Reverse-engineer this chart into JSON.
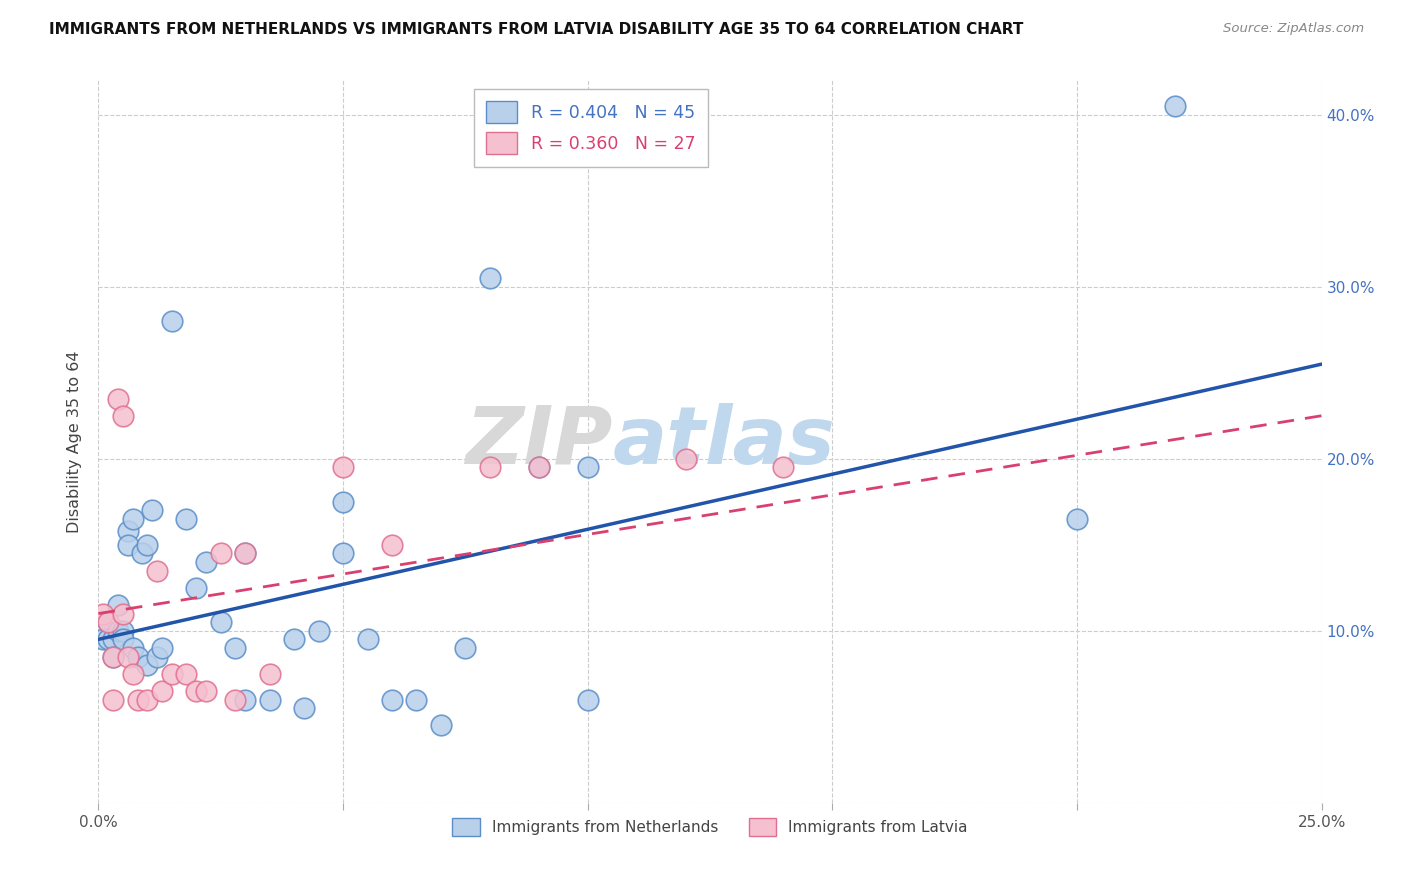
{
  "title": "IMMIGRANTS FROM NETHERLANDS VS IMMIGRANTS FROM LATVIA DISABILITY AGE 35 TO 64 CORRELATION CHART",
  "source": "Source: ZipAtlas.com",
  "ylabel": "Disability Age 35 to 64",
  "xlim": [
    0.0,
    0.25
  ],
  "ylim": [
    0.0,
    0.42
  ],
  "xticks": [
    0.0,
    0.05,
    0.1,
    0.15,
    0.2,
    0.25
  ],
  "yticks": [
    0.0,
    0.1,
    0.2,
    0.3,
    0.4
  ],
  "xticklabels": [
    "0.0%",
    "",
    "",
    "",
    "",
    "25.0%"
  ],
  "yticklabels_right": [
    "",
    "10.0%",
    "20.0%",
    "30.0%",
    "40.0%"
  ],
  "netherlands_R": 0.404,
  "netherlands_N": 45,
  "latvia_R": 0.36,
  "latvia_N": 27,
  "netherlands_color": "#b8d0ea",
  "netherlands_edge_color": "#5b8ec9",
  "netherlands_line_color": "#2255aa",
  "latvia_color": "#f5c0cf",
  "latvia_edge_color": "#e07090",
  "latvia_line_color": "#d94070",
  "legend_label_netherlands": "Immigrants from Netherlands",
  "legend_label_latvia": "Immigrants from Latvia",
  "nl_trend_x0": 0.0,
  "nl_trend_y0": 0.095,
  "nl_trend_x1": 0.25,
  "nl_trend_y1": 0.255,
  "lv_trend_x0": 0.0,
  "lv_trend_y0": 0.11,
  "lv_trend_x1": 0.25,
  "lv_trend_y1": 0.225,
  "netherlands_x": [
    0.001,
    0.002,
    0.002,
    0.003,
    0.003,
    0.004,
    0.004,
    0.005,
    0.005,
    0.006,
    0.006,
    0.007,
    0.007,
    0.008,
    0.009,
    0.01,
    0.01,
    0.011,
    0.012,
    0.013,
    0.015,
    0.018,
    0.02,
    0.022,
    0.025,
    0.028,
    0.03,
    0.03,
    0.035,
    0.04,
    0.042,
    0.045,
    0.05,
    0.05,
    0.055,
    0.06,
    0.065,
    0.07,
    0.075,
    0.08,
    0.09,
    0.1,
    0.1,
    0.2,
    0.22
  ],
  "netherlands_y": [
    0.095,
    0.105,
    0.095,
    0.095,
    0.085,
    0.115,
    0.1,
    0.1,
    0.095,
    0.158,
    0.15,
    0.165,
    0.09,
    0.085,
    0.145,
    0.15,
    0.08,
    0.17,
    0.085,
    0.09,
    0.28,
    0.165,
    0.125,
    0.14,
    0.105,
    0.09,
    0.06,
    0.145,
    0.06,
    0.095,
    0.055,
    0.1,
    0.175,
    0.145,
    0.095,
    0.06,
    0.06,
    0.045,
    0.09,
    0.305,
    0.195,
    0.195,
    0.06,
    0.165,
    0.405
  ],
  "latvia_x": [
    0.001,
    0.002,
    0.003,
    0.003,
    0.004,
    0.005,
    0.005,
    0.006,
    0.007,
    0.008,
    0.01,
    0.012,
    0.013,
    0.015,
    0.018,
    0.02,
    0.022,
    0.025,
    0.028,
    0.03,
    0.035,
    0.05,
    0.06,
    0.08,
    0.09,
    0.12,
    0.14
  ],
  "latvia_y": [
    0.11,
    0.105,
    0.085,
    0.06,
    0.235,
    0.225,
    0.11,
    0.085,
    0.075,
    0.06,
    0.06,
    0.135,
    0.065,
    0.075,
    0.075,
    0.065,
    0.065,
    0.145,
    0.06,
    0.145,
    0.075,
    0.195,
    0.15,
    0.195,
    0.195,
    0.2,
    0.195
  ],
  "watermark_zip": "ZIP",
  "watermark_atlas": "atlas",
  "background_color": "#ffffff",
  "grid_color": "#cccccc"
}
